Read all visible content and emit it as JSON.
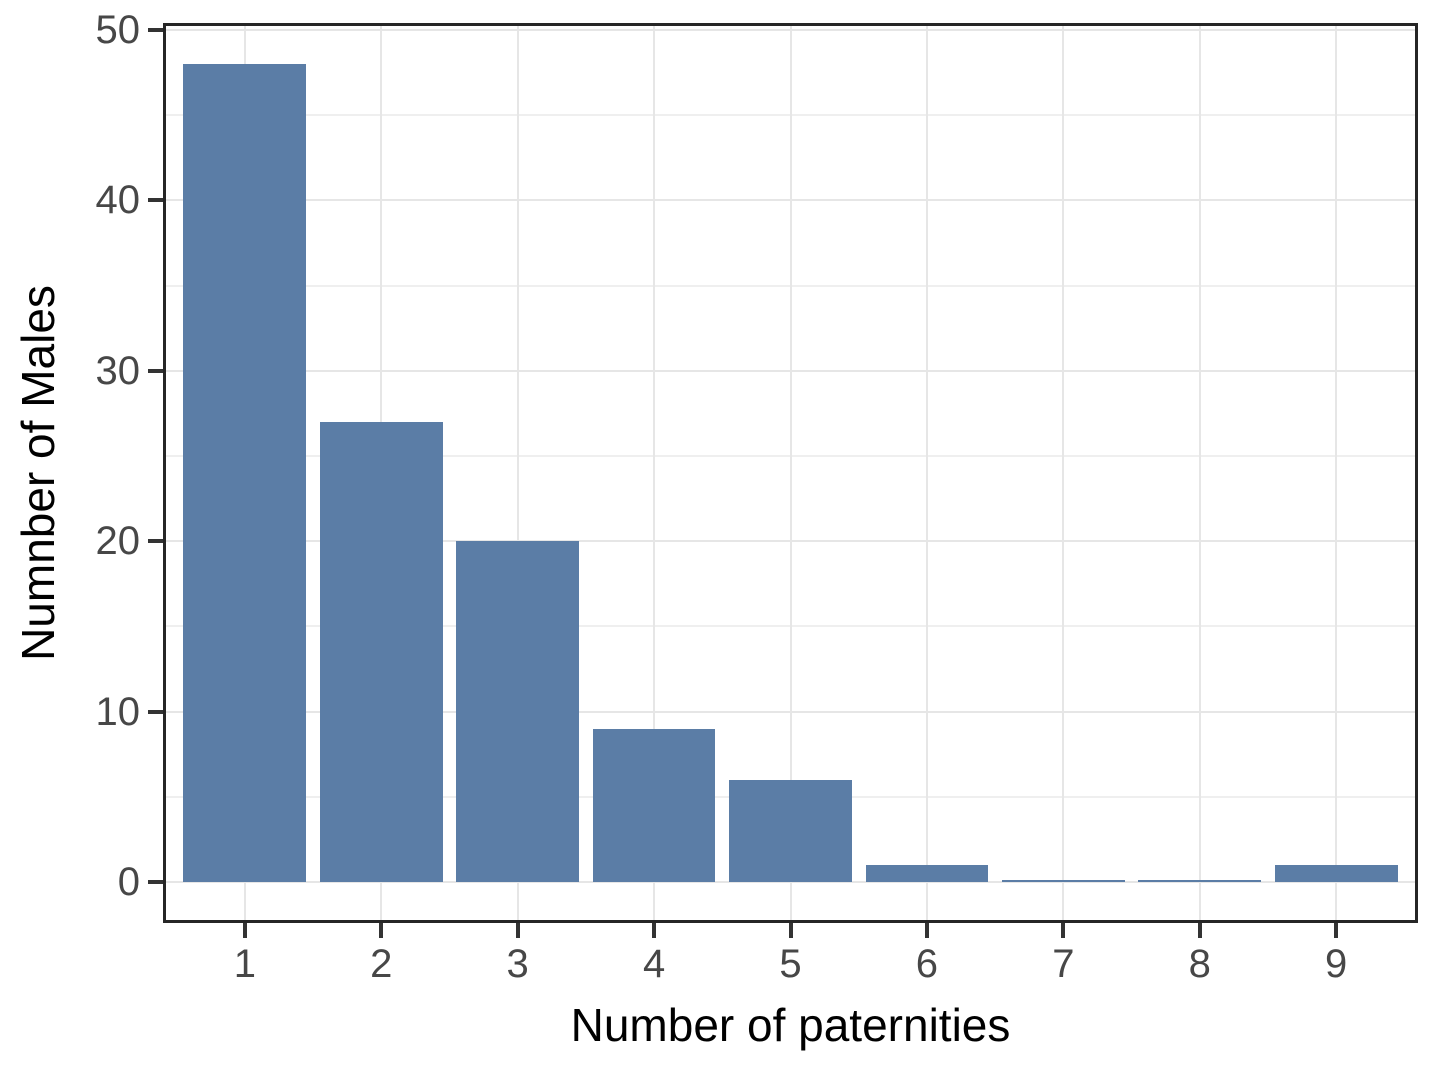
{
  "chart_data": {
    "type": "bar",
    "categories": [
      "1",
      "2",
      "3",
      "4",
      "5",
      "6",
      "7",
      "8",
      "9"
    ],
    "values": [
      48,
      27,
      20,
      9,
      6,
      1,
      0,
      0,
      1
    ],
    "title": "",
    "xlabel": "Number of paternities",
    "ylabel": "Numnber of Males",
    "ylim": [
      0,
      50
    ],
    "y_major_ticks": [
      0,
      10,
      20,
      30,
      40,
      50
    ],
    "y_minor_ticks": [
      5,
      15,
      25,
      35,
      45
    ],
    "grid": "major+minor",
    "legend_position": "none",
    "bar_width_ratio": 0.9,
    "colors": {
      "bar_fill": "#5B7DA6",
      "bar_opacity": 0.84,
      "grid_major": "#E6E6E6",
      "grid_minor": "#EFEFEF",
      "panel_border": "#262626",
      "tick_mark": "#333333",
      "tick_label": "#474747",
      "axis_title": "#000000",
      "background": "#FFFFFF"
    }
  }
}
